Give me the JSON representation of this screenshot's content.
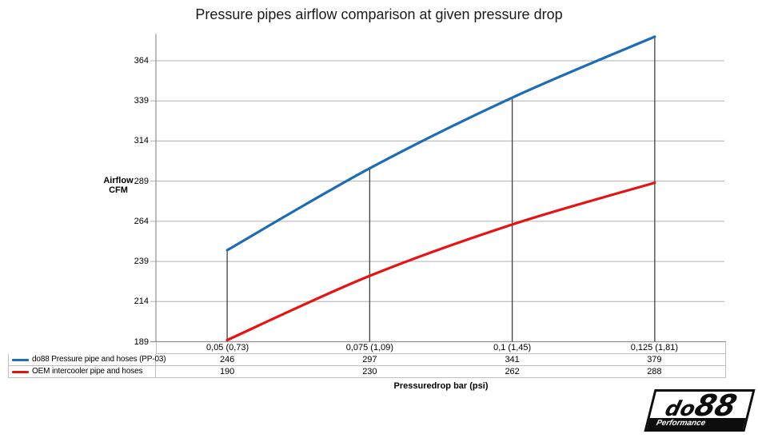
{
  "title": "Pressure pipes airflow comparison at given pressure drop",
  "y_axis": {
    "title_line1": "Airflow",
    "title_line2": "CFM"
  },
  "x_axis": {
    "title": "Pressuredrop bar (psi)"
  },
  "chart_data": {
    "type": "line",
    "title": "Pressure pipes airflow comparison at given pressure drop",
    "xlabel": "Pressuredrop bar (psi)",
    "ylabel": "Airflow CFM",
    "categories": [
      "0,05 (0,73)",
      "0,075 (1,09)",
      "0,1 (1,45)",
      "0,125 (1,81)"
    ],
    "series": [
      {
        "name": "do88 Pressure pipe and hoses (PP-03)",
        "color": "#1E6CB4",
        "values": [
          246,
          297,
          341,
          379
        ]
      },
      {
        "name": "OEM intercooler pipe and hoses",
        "color": "#E51414",
        "values": [
          190,
          230,
          262,
          288
        ]
      }
    ],
    "y_ticks": [
      364,
      339,
      314,
      289,
      264,
      239,
      214,
      189
    ],
    "ylim": [
      189,
      381
    ],
    "grid": "horizontal",
    "legend_position": "data-table-left",
    "drop_lines": true
  },
  "logo": {
    "brand_prefix": "do",
    "brand_digits": "88",
    "tagline": "Performance"
  },
  "colors": {
    "series1": "#1E6CB4",
    "series2": "#E51414",
    "gridline": "#B0B0B0",
    "axis": "#8E8E8E",
    "drop_line": "#404040",
    "table_border": "#BFBFBF"
  }
}
